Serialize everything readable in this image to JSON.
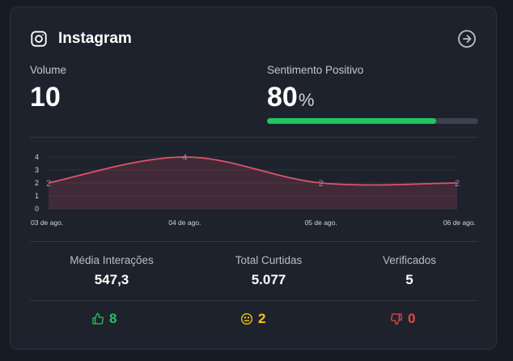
{
  "header": {
    "title": "Instagram",
    "icon": "instagram-icon",
    "action_icon": "arrow-right-circle-icon"
  },
  "volume": {
    "label": "Volume",
    "value": "10"
  },
  "sentiment": {
    "label": "Sentimento Positivo",
    "value": "80",
    "unit": "%",
    "progress": 0.8,
    "color": "#22c55e"
  },
  "chart_data": {
    "type": "area",
    "categories": [
      "03 de ago.",
      "04 de ago.",
      "05 de ago.",
      "06 de ago."
    ],
    "series": [
      {
        "values": [
          2,
          4,
          2,
          2
        ],
        "color": "#e05268"
      }
    ],
    "data_labels": [
      "2",
      "4",
      "2",
      "2"
    ],
    "yticks": [
      "0",
      "1",
      "2",
      "3",
      "4"
    ],
    "ylim": [
      0,
      4
    ],
    "grid": true,
    "xlabel": "",
    "ylabel": "",
    "title": ""
  },
  "stats": [
    {
      "label": "Média Interações",
      "value": "547,3"
    },
    {
      "label": "Total Curtidas",
      "value": "5.077"
    },
    {
      "label": "Verificados",
      "value": "5"
    }
  ],
  "reactions": {
    "positive": {
      "value": "8",
      "icon": "thumbs-up-icon",
      "color": "#22c55e"
    },
    "neutral": {
      "value": "2",
      "icon": "neutral-face-icon",
      "color": "#f5c518"
    },
    "negative": {
      "value": "0",
      "icon": "thumbs-down-icon",
      "color": "#ef4444"
    }
  }
}
